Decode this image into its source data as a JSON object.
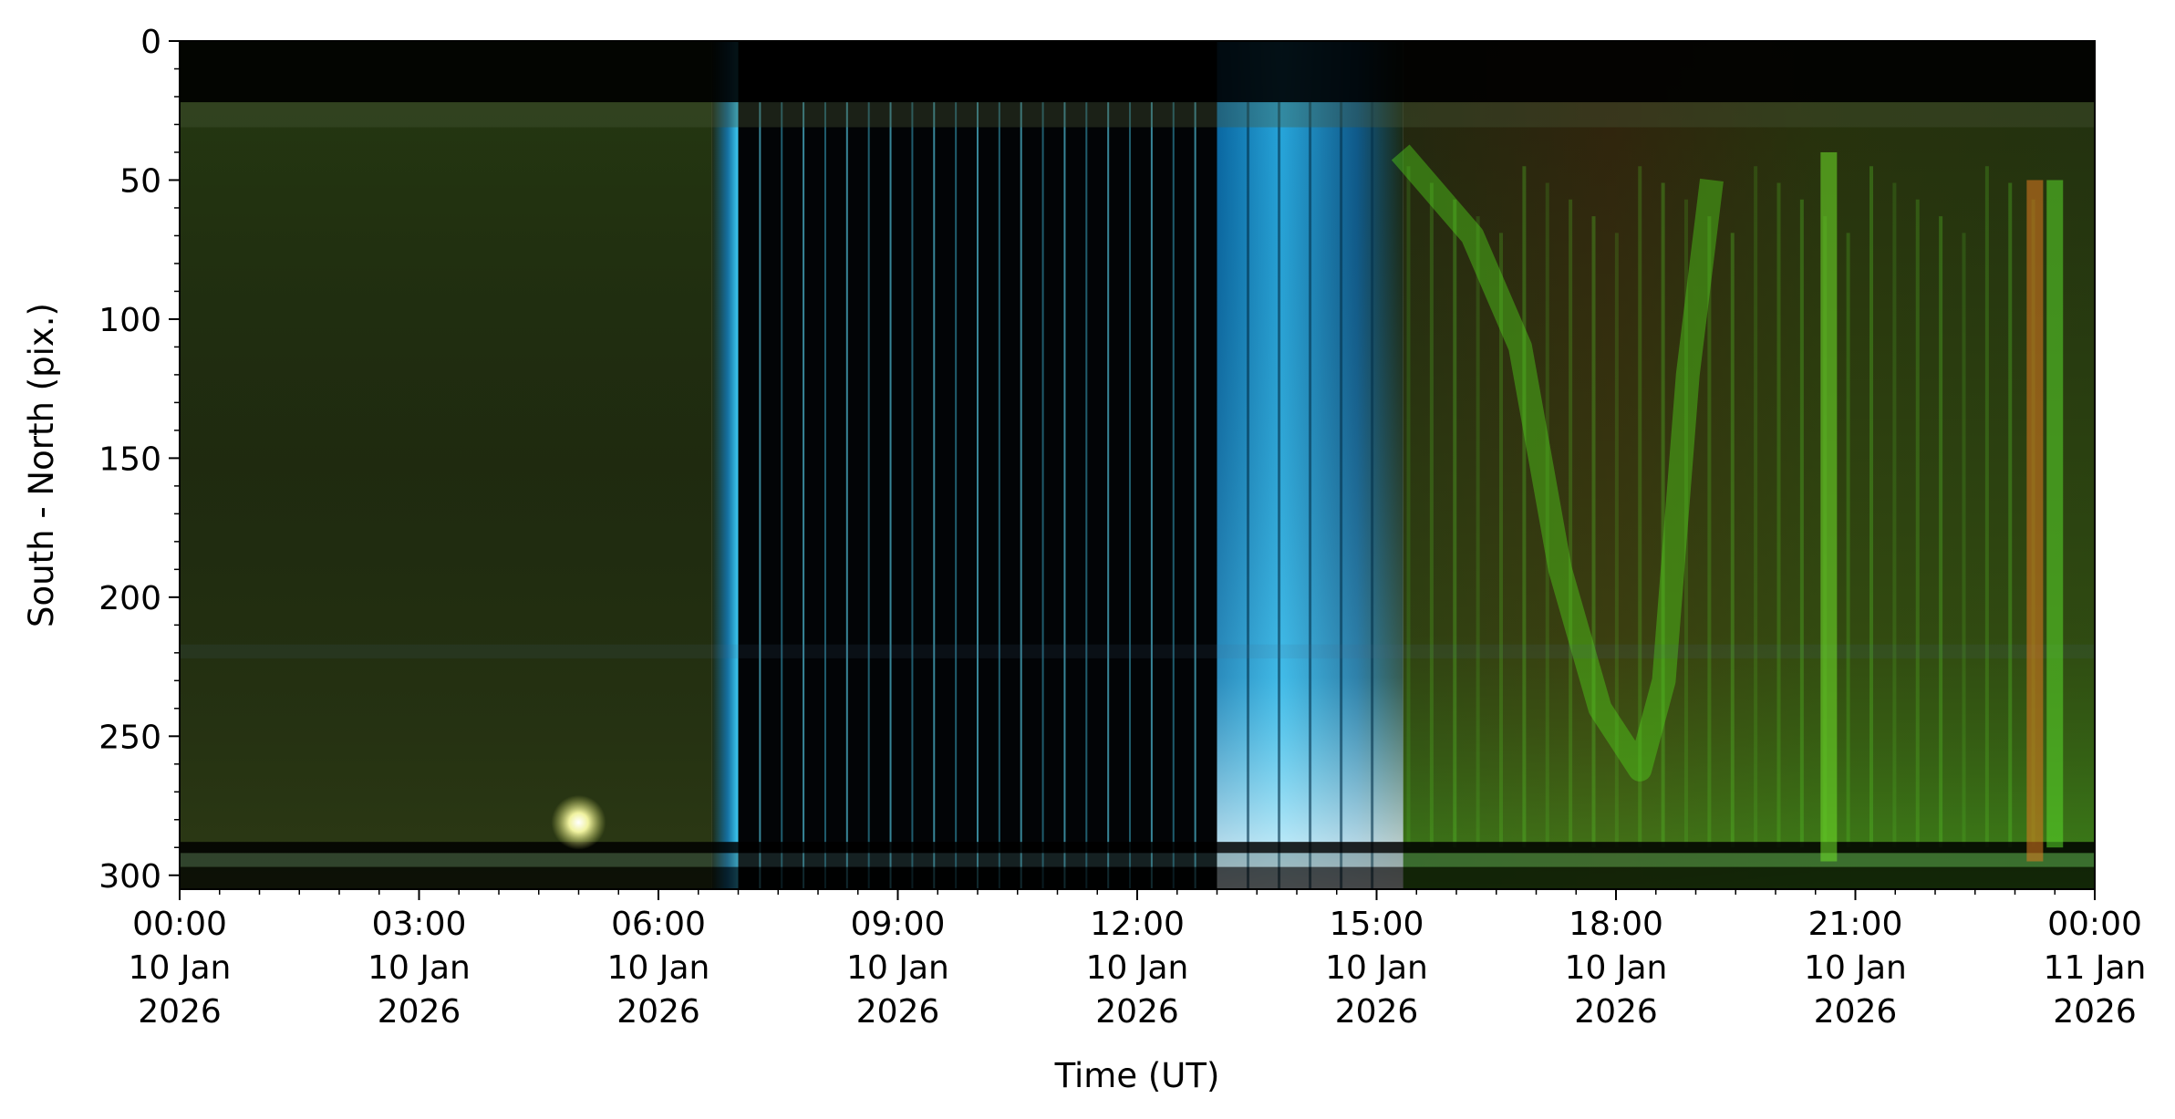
{
  "chart_data": {
    "type": "heatmap",
    "title": "",
    "xlabel": "Time (UT)",
    "ylabel": "South - North (pix.)",
    "x_range": [
      "2026-01-10 00:00",
      "2026-01-11 00:00"
    ],
    "ylim": [
      305,
      0
    ],
    "y_inverted": true,
    "grid": false,
    "legend": "none",
    "x_ticks": [
      {
        "time": "2026-01-10 00:00",
        "lines": [
          "00:00",
          "10 Jan",
          "2026"
        ]
      },
      {
        "time": "2026-01-10 03:00",
        "lines": [
          "03:00",
          "10 Jan",
          "2026"
        ]
      },
      {
        "time": "2026-01-10 06:00",
        "lines": [
          "06:00",
          "10 Jan",
          "2026"
        ]
      },
      {
        "time": "2026-01-10 09:00",
        "lines": [
          "09:00",
          "10 Jan",
          "2026"
        ]
      },
      {
        "time": "2026-01-10 12:00",
        "lines": [
          "12:00",
          "10 Jan",
          "2026"
        ]
      },
      {
        "time": "2026-01-10 15:00",
        "lines": [
          "15:00",
          "10 Jan",
          "2026"
        ]
      },
      {
        "time": "2026-01-10 18:00",
        "lines": [
          "18:00",
          "10 Jan",
          "2026"
        ]
      },
      {
        "time": "2026-01-10 21:00",
        "lines": [
          "21:00",
          "10 Jan",
          "2026"
        ]
      },
      {
        "time": "2026-01-11 00:00",
        "lines": [
          "00:00",
          "11 Jan",
          "2026"
        ]
      }
    ],
    "y_ticks": [
      0,
      50,
      100,
      150,
      200,
      250,
      300
    ],
    "image_regions": [
      {
        "name": "night-quiet",
        "start": "2026-01-10 00:00",
        "end": "2026-01-10 06:40",
        "color": "#1f2a0f"
      },
      {
        "name": "dawn-twilight",
        "start": "2026-01-10 06:40",
        "end": "2026-01-10 07:00",
        "color": "#1b8fc0"
      },
      {
        "name": "daylight-gap",
        "start": "2026-01-10 07:00",
        "end": "2026-01-10 13:00",
        "color": "#020406"
      },
      {
        "name": "dusk-twilight",
        "start": "2026-01-10 13:00",
        "end": "2026-01-10 15:20",
        "color": "#1e8ec6"
      },
      {
        "name": "aurora-active",
        "start": "2026-01-10 15:20",
        "end": "2026-01-11 00:00",
        "color": "#3a3a10"
      }
    ],
    "aurora_streaks": [
      {
        "time": "2026-01-10 20:40",
        "y_top": 40,
        "y_bottom": 295,
        "color": "#6fe22a"
      },
      {
        "time": "2026-01-10 23:15",
        "y_top": 50,
        "y_bottom": 295,
        "color": "#e07a20"
      },
      {
        "time": "2026-01-10 23:30",
        "y_top": 50,
        "y_bottom": 290,
        "color": "#5ad92a"
      }
    ],
    "moon_spot": {
      "time": "2026-01-10 05:00",
      "y": 281,
      "color": "#f5f5c0"
    }
  }
}
